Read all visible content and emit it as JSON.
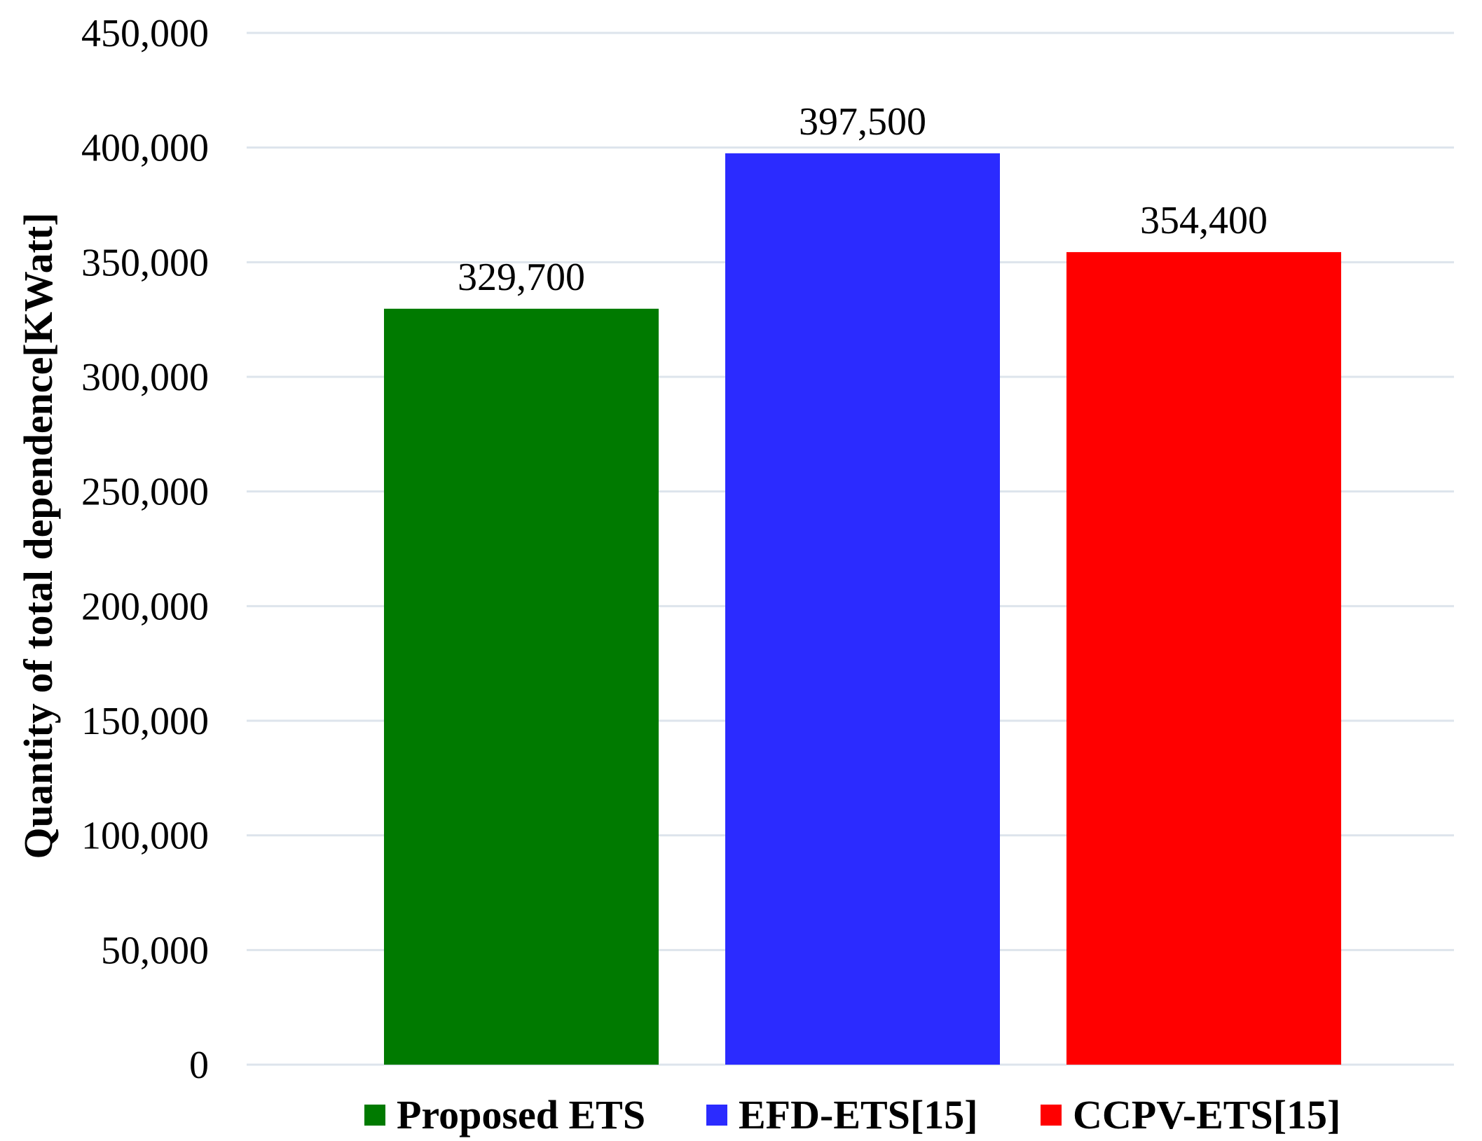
{
  "chart_data": {
    "type": "bar",
    "title": "",
    "xlabel": "",
    "ylabel": "Quantity of total dependence[KWatt]",
    "ylim": [
      0,
      450000
    ],
    "yticks": [
      0,
      50000,
      100000,
      150000,
      200000,
      250000,
      300000,
      350000,
      400000,
      450000
    ],
    "ytick_labels": [
      "0",
      "50,000",
      "100,000",
      "150,000",
      "200,000",
      "250,000",
      "300,000",
      "350,000",
      "400,000",
      "450,000"
    ],
    "grid": true,
    "legend_position": "bottom",
    "series": [
      {
        "name": "Proposed ETS",
        "value": 329700,
        "label": "329,700",
        "color": "#007a00"
      },
      {
        "name": "EFD-ETS[15]",
        "value": 397500,
        "label": "397,500",
        "color": "#2b2bff"
      },
      {
        "name": "CCPV-ETS[15]",
        "value": 354400,
        "label": "354,400",
        "color": "#ff0000"
      }
    ]
  }
}
